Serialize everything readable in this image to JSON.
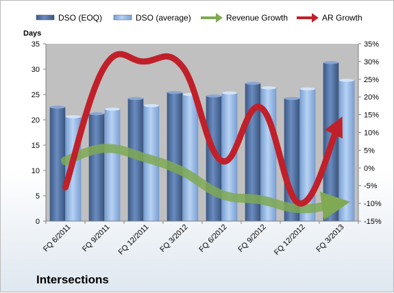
{
  "footer": {
    "title": "Intersections"
  },
  "chart_data": {
    "type": "bar",
    "categories": [
      "FQ 6/2011",
      "FQ 9/2011",
      "FQ 12/2011",
      "FQ 3/2012",
      "FQ 6/2012",
      "FQ 9/2012",
      "FQ 12/2012",
      "FQ 3/2013"
    ],
    "ylabel": "Days",
    "ylim": [
      0,
      35
    ],
    "y_ticks": [
      "0",
      "5",
      "10",
      "15",
      "20",
      "25",
      "30",
      "35"
    ],
    "y2lim": [
      -15,
      35
    ],
    "y2_ticks": [
      "-15%",
      "-10%",
      "-5%",
      "0%",
      "5%",
      "10%",
      "15%",
      "20%",
      "25%",
      "30%",
      "35%"
    ],
    "legend_placement": "top",
    "grid": false,
    "plot_background": "#c0c0c0",
    "series": [
      {
        "name": "DSO (EOQ)",
        "kind": "bar",
        "axis": "left",
        "color": "#4f6f9f",
        "values": [
          22.5,
          21.2,
          24.2,
          25.4,
          24.7,
          27.2,
          24.2,
          31.3
        ]
      },
      {
        "name": "DSO (average)",
        "kind": "bar",
        "axis": "left",
        "color": "#8fb3e3",
        "values": [
          20.6,
          22.1,
          22.8,
          25.0,
          25.3,
          26.3,
          26.1,
          27.8
        ]
      },
      {
        "name": "Revenue Growth",
        "kind": "line",
        "axis": "right",
        "color": "#7fa953",
        "values": [
          2,
          5.5,
          3,
          -1,
          -7.5,
          -9,
          -11.5,
          -10
        ]
      },
      {
        "name": "AR Growth",
        "kind": "line",
        "axis": "right",
        "color": "#c0202a",
        "values": [
          -5.5,
          28.5,
          30,
          28.5,
          2,
          17,
          -10,
          12.5
        ]
      }
    ]
  }
}
